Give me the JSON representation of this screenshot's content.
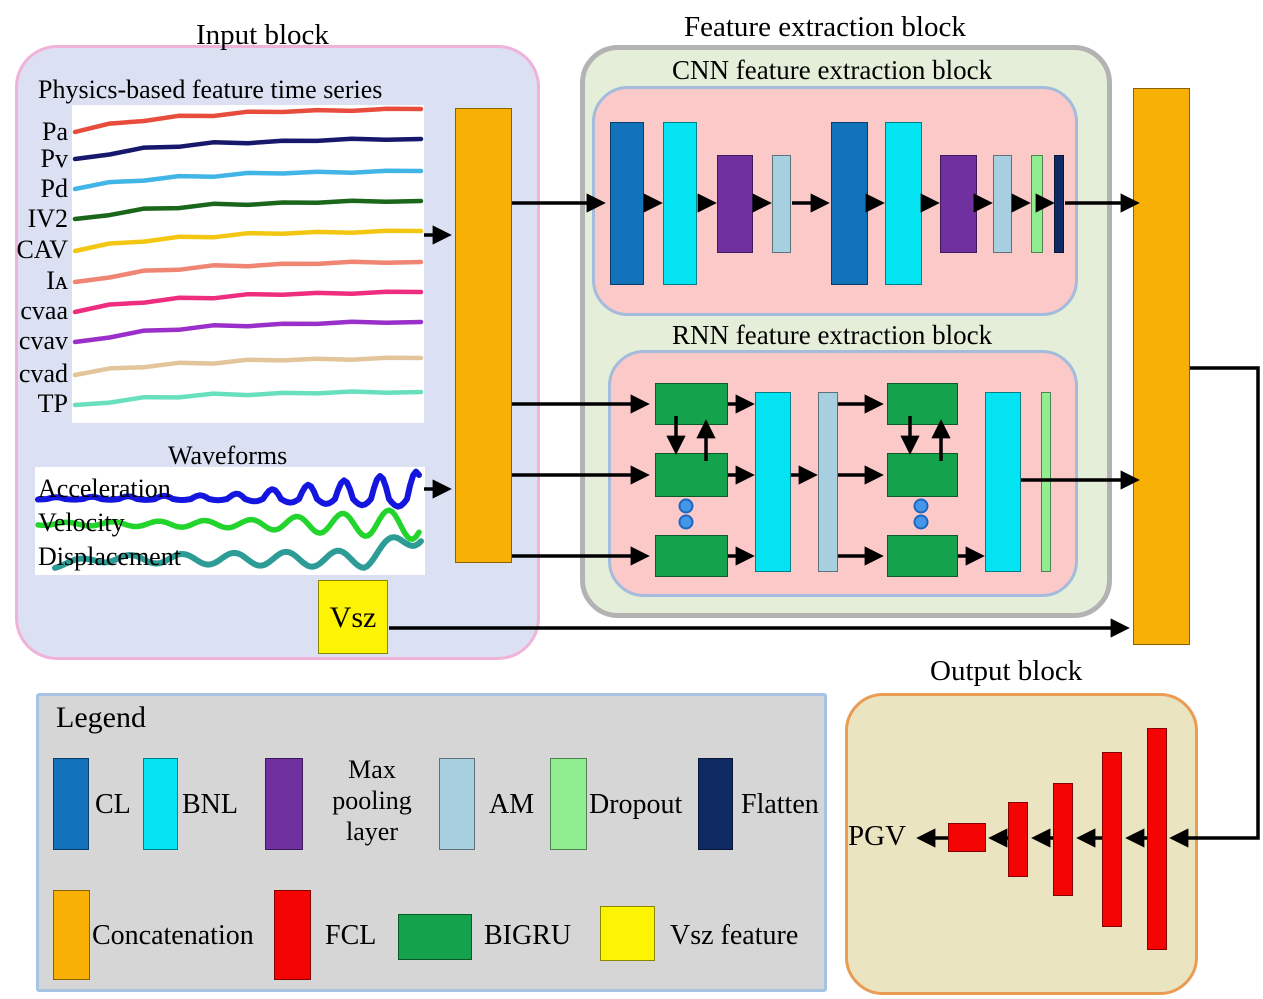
{
  "colors": {
    "cl_blue": "#1272ba",
    "bnl_cyan": "#04e3f2",
    "maxpool_purple": "#7030a0",
    "am_lightblue": "#a8cfe0",
    "dropout_green": "#90ee90",
    "flatten_navy": "#102a64",
    "concat_orange": "#f9b005",
    "fcl_red": "#f50404",
    "bigru_green": "#14a24c",
    "vsz_yellow": "#fdf403",
    "dots_blue": "#4596e8",
    "input_fill": "#dbe1f2",
    "input_border": "#f0b2d8",
    "feature_fill": "#e4eed9",
    "feature_border": "#b3b3b3",
    "pink_fill": "#fcc9c9",
    "pink_border": "#a3bbdc",
    "output_fill": "#ebe4c1",
    "output_border": "#ea9c55",
    "legend_fill": "#d6d6d6",
    "legend_border": "#a7c3e3",
    "arrow_black": "#000000"
  },
  "input_block": {
    "title": "Input block",
    "timeseries_title": "Physics-based feature time series",
    "timeseries": [
      {
        "label": "Pa",
        "color": "#e74c3c"
      },
      {
        "label": "Pv",
        "color": "#17176b"
      },
      {
        "label": "Pd",
        "color": "#41b6e6"
      },
      {
        "label": "IV2",
        "color": "#1a661a"
      },
      {
        "label": "CAV",
        "color": "#f3c711"
      },
      {
        "label": "Iᴀ",
        "color": "#ef8572"
      },
      {
        "label": "cvaa",
        "color": "#ee2d7e"
      },
      {
        "label": "cvav",
        "color": "#9a2fc9"
      },
      {
        "label": "cvad",
        "color": "#e2c59b"
      },
      {
        "label": "TP",
        "color": "#69e0bd"
      }
    ],
    "waveforms_title": "Waveforms",
    "waveforms": [
      {
        "label": "Acceleration",
        "color": "#1515e0"
      },
      {
        "label": "Velocity",
        "color": "#23d42c"
      },
      {
        "label": "Displacement",
        "color": "#2e9c96"
      }
    ],
    "vsz_label": "Vsz"
  },
  "feature_block": {
    "title": "Feature extraction block",
    "cnn_title": "CNN feature extraction block",
    "rnn_title": "RNN feature extraction block"
  },
  "output_block": {
    "title": "Output block",
    "result_label": "PGV"
  },
  "legend": {
    "title": "Legend",
    "items": [
      {
        "label": "CL",
        "color": "#1272ba"
      },
      {
        "label": "BNL",
        "color": "#04e3f2"
      },
      {
        "label": "Max pooling layer",
        "color": "#7030a0"
      },
      {
        "label": "AM",
        "color": "#a8cfe0"
      },
      {
        "label": "Dropout",
        "color": "#90ee90"
      },
      {
        "label": "Flatten",
        "color": "#102a64"
      },
      {
        "label": "Concatenation",
        "color": "#f9b005"
      },
      {
        "label": "FCL",
        "color": "#f50404"
      },
      {
        "label": "BIGRU",
        "color": "#14a24c"
      },
      {
        "label": "Vsz feature",
        "color": "#fdf403"
      }
    ]
  }
}
